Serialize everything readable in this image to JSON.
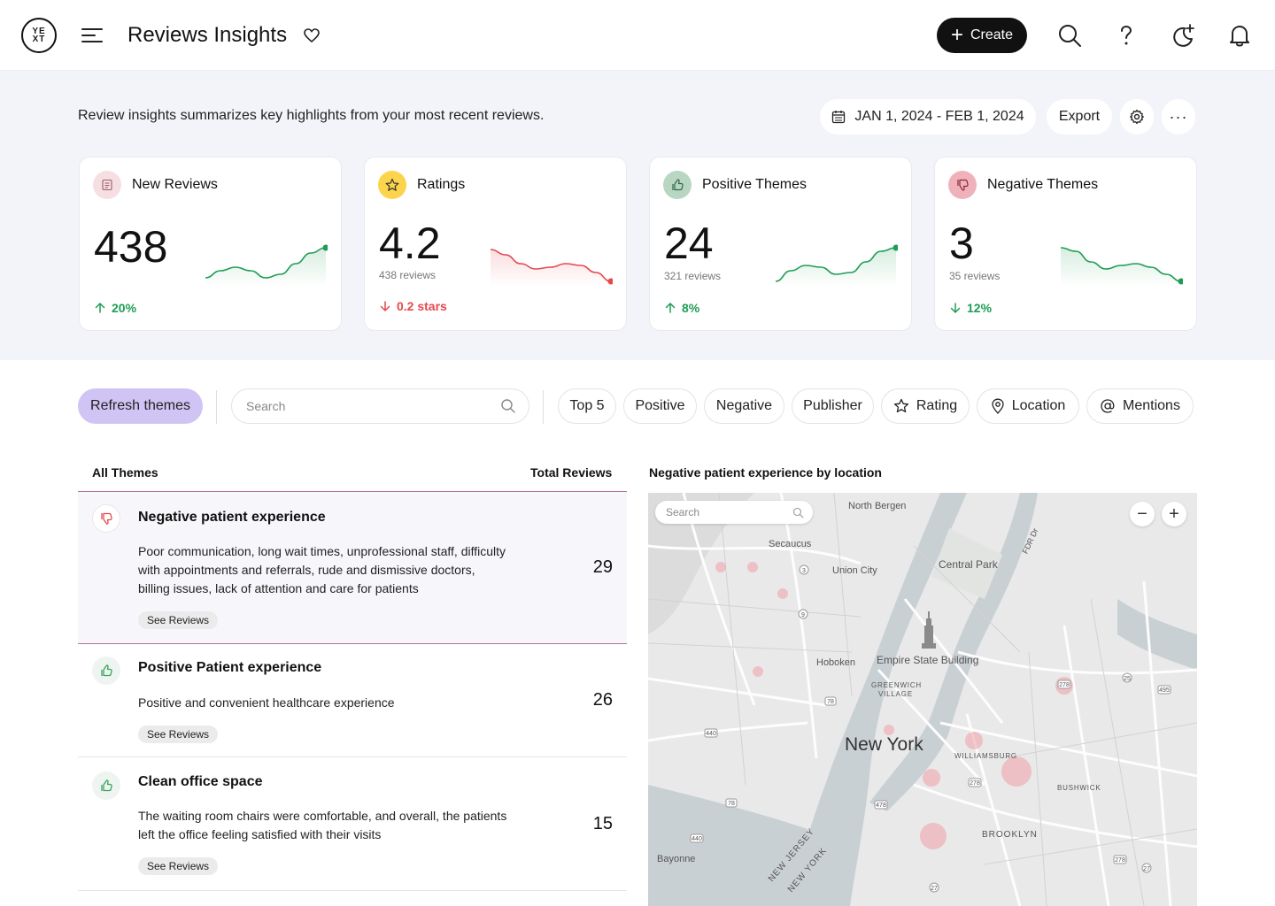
{
  "header": {
    "logo": "yext-logo",
    "title": "Reviews Insights",
    "create_label": "Create"
  },
  "summary": {
    "intro": "Review insights summarizes key highlights from your most recent reviews.",
    "date_range": "JAN 1, 2024 - FEB 1, 2024",
    "export_label": "Export",
    "more_label": "···"
  },
  "cards": [
    {
      "title": "New Reviews",
      "value": "438",
      "sub": "",
      "delta": "20%",
      "trend": "up",
      "icon": "document-icon",
      "color": "#1f9d55",
      "points": [
        0.15,
        0.35,
        0.45,
        0.35,
        0.15,
        0.25,
        0.55,
        0.85,
        1.0
      ]
    },
    {
      "title": "Ratings",
      "value": "4.2",
      "sub": "438 reviews",
      "delta": "0.2 stars",
      "trend": "down",
      "icon": "star-icon",
      "color": "#e5484d",
      "points": [
        0.95,
        0.8,
        0.55,
        0.4,
        0.45,
        0.55,
        0.5,
        0.3,
        0.05
      ]
    },
    {
      "title": "Positive Themes",
      "value": "24",
      "sub": "321 reviews",
      "delta": "8%",
      "trend": "up",
      "icon": "thumbs-up-icon",
      "color": "#1f9d55",
      "points": [
        0.05,
        0.35,
        0.5,
        0.45,
        0.25,
        0.3,
        0.6,
        0.9,
        1.0
      ]
    },
    {
      "title": "Negative Themes",
      "value": "3",
      "sub": "35 reviews",
      "delta": "12%",
      "trend": "down-good",
      "icon": "thumbs-down-icon",
      "color": "#1f9d55",
      "points": [
        1.0,
        0.9,
        0.6,
        0.4,
        0.5,
        0.55,
        0.45,
        0.25,
        0.05
      ]
    }
  ],
  "filters": {
    "refresh_label": "Refresh themes",
    "search_placeholder": "Search",
    "chips": [
      "Top 5",
      "Positive",
      "Negative",
      "Publisher",
      "Rating",
      "Location",
      "Mentions"
    ]
  },
  "table": {
    "col_themes": "All Themes",
    "col_total": "Total Reviews",
    "see_reviews": "See Reviews",
    "rows": [
      {
        "title": "Negative patient experience",
        "desc": "Poor communication, long wait times, unprofessional staff, difficulty with appointments and referrals, rude and dismissive doctors, billing issues, lack of attention and care for patients",
        "count": "29",
        "sentiment": "negative"
      },
      {
        "title": "Positive Patient experience",
        "desc": "Positive and convenient healthcare experience",
        "count": "26",
        "sentiment": "positive"
      },
      {
        "title": "Clean office space",
        "desc": "The waiting room chairs were comfortable, and overall, the patients left the office feeling satisfied with their visits",
        "count": "15",
        "sentiment": "positive"
      }
    ]
  },
  "map": {
    "title": "Negative patient experience by location",
    "search_placeholder": "Search",
    "labels": {
      "north_bergen": "North Bergen",
      "secaucus": "Secaucus",
      "union_city": "Union City",
      "central_park": "Central Park",
      "fdr": "FDR Dr",
      "hoboken": "Hoboken",
      "empire": "Empire State Building",
      "greenwich": "GREENWICH",
      "village": "VILLAGE",
      "new_york": "New York",
      "williamsburg": "WILLIAMSBURG",
      "bushwick": "BUSHWICK",
      "brooklyn": "BROOKLYN",
      "bayonne": "Bayonne",
      "new_jersey": "NEW JERSEY",
      "new_york_state": "NEW YORK",
      "rt3": "3",
      "rt9": "9",
      "rt495": "495",
      "rt278a": "278",
      "rt278b": "278",
      "rt278c": "278",
      "rt25": "25",
      "rt440a": "440",
      "rt440b": "440",
      "rt78a": "78",
      "rt78b": "78",
      "rt478": "478",
      "rt27a": "27",
      "rt27b": "27"
    }
  }
}
